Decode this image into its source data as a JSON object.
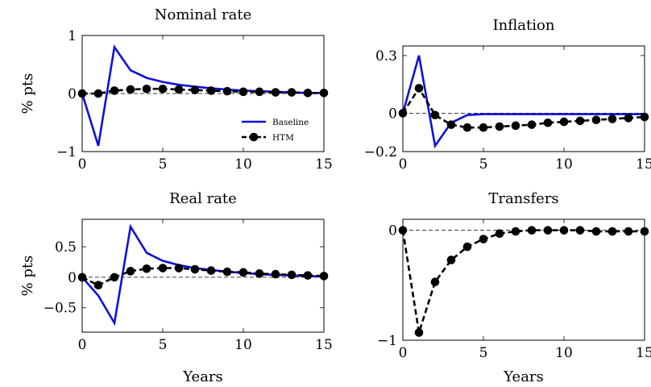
{
  "chart_data": [
    {
      "type": "line",
      "title": "Nominal rate",
      "ylabel": "% pts",
      "xlabel": "",
      "xlim": [
        0,
        15
      ],
      "ylim": [
        -1,
        1
      ],
      "xticks": [
        0,
        5,
        10,
        15
      ],
      "yticks": [
        -1,
        0,
        1
      ],
      "ytick_labels": [
        "−1",
        "0",
        "1"
      ],
      "legend": "lower-right",
      "series": [
        {
          "name": "Baseline",
          "color": "#1010e0",
          "style": "solid",
          "x": [
            0,
            1,
            2,
            3,
            4,
            5,
            6,
            7,
            8,
            9,
            10,
            11,
            12,
            13,
            14,
            15
          ],
          "y": [
            0,
            -0.9,
            0.8,
            0.4,
            0.27,
            0.2,
            0.15,
            0.12,
            0.09,
            0.07,
            0.05,
            0.04,
            0.03,
            0.02,
            0.01,
            0.01
          ]
        },
        {
          "name": "HTM",
          "color": "#000000",
          "style": "dashed-markers",
          "x": [
            0,
            1,
            2,
            3,
            4,
            5,
            6,
            7,
            8,
            9,
            10,
            11,
            12,
            13,
            14,
            15
          ],
          "y": [
            0,
            0,
            0.05,
            0.07,
            0.08,
            0.08,
            0.07,
            0.06,
            0.05,
            0.04,
            0.03,
            0.03,
            0.02,
            0.02,
            0.01,
            0.01
          ]
        }
      ]
    },
    {
      "type": "line",
      "title": "Inflation",
      "ylabel": "",
      "xlabel": "",
      "xlim": [
        0,
        15
      ],
      "ylim": [
        -0.2,
        0.35
      ],
      "xticks": [
        0,
        5,
        10,
        15
      ],
      "yticks": [
        -0.2,
        0,
        0.3
      ],
      "ytick_labels": [
        "−0.2",
        "0",
        "0.3"
      ],
      "series": [
        {
          "color": "#1010e0",
          "style": "solid",
          "x": [
            0,
            1,
            2,
            3,
            4,
            5,
            6,
            7,
            8,
            9,
            10,
            11,
            12,
            13,
            14,
            15
          ],
          "y": [
            0,
            0.3,
            -0.17,
            -0.05,
            -0.01,
            -0.005,
            -0.005,
            -0.005,
            -0.005,
            -0.005,
            -0.005,
            -0.005,
            -0.005,
            -0.005,
            -0.005,
            -0.005
          ]
        },
        {
          "color": "#000000",
          "style": "dashed-markers",
          "x": [
            0,
            1,
            2,
            3,
            4,
            5,
            6,
            7,
            8,
            9,
            10,
            11,
            12,
            13,
            14,
            15
          ],
          "y": [
            0,
            0.13,
            -0.01,
            -0.06,
            -0.075,
            -0.075,
            -0.07,
            -0.065,
            -0.06,
            -0.05,
            -0.045,
            -0.04,
            -0.035,
            -0.03,
            -0.025,
            -0.02
          ]
        }
      ]
    },
    {
      "type": "line",
      "title": "Real rate",
      "ylabel": "% pts",
      "xlabel": "Years",
      "xlim": [
        0,
        15
      ],
      "ylim": [
        -0.9,
        0.95
      ],
      "xticks": [
        0,
        5,
        10,
        15
      ],
      "yticks": [
        -0.5,
        0,
        0.5
      ],
      "ytick_labels": [
        "−0.5",
        "0",
        "0.5"
      ],
      "series": [
        {
          "color": "#1010e0",
          "style": "solid",
          "x": [
            0,
            1,
            2,
            3,
            4,
            5,
            6,
            7,
            8,
            9,
            10,
            11,
            12,
            13,
            14,
            15
          ],
          "y": [
            0,
            -0.3,
            -0.75,
            0.83,
            0.4,
            0.27,
            0.2,
            0.15,
            0.12,
            0.09,
            0.07,
            0.05,
            0.04,
            0.03,
            0.02,
            0.01
          ]
        },
        {
          "color": "#000000",
          "style": "dashed-markers",
          "x": [
            0,
            1,
            2,
            3,
            4,
            5,
            6,
            7,
            8,
            9,
            10,
            11,
            12,
            13,
            14,
            15
          ],
          "y": [
            0,
            -0.13,
            0,
            0.1,
            0.14,
            0.15,
            0.15,
            0.13,
            0.11,
            0.09,
            0.08,
            0.06,
            0.05,
            0.04,
            0.03,
            0.02
          ]
        }
      ]
    },
    {
      "type": "line",
      "title": "Transfers",
      "ylabel": "",
      "xlabel": "Years",
      "xlim": [
        0,
        15
      ],
      "ylim": [
        -1,
        0.1
      ],
      "xticks": [
        0,
        5,
        10,
        15
      ],
      "yticks": [
        -1,
        0
      ],
      "ytick_labels": [
        "−1",
        "0"
      ],
      "series": [
        {
          "color": "#000000",
          "style": "dashed-markers",
          "x": [
            0,
            1,
            2,
            3,
            4,
            5,
            6,
            7,
            8,
            9,
            10,
            11,
            12,
            13,
            14,
            15
          ],
          "y": [
            0,
            -0.93,
            -0.47,
            -0.27,
            -0.15,
            -0.08,
            -0.03,
            -0.01,
            0,
            0,
            0,
            0,
            -0.01,
            -0.01,
            -0.01,
            -0.01
          ]
        }
      ]
    }
  ]
}
